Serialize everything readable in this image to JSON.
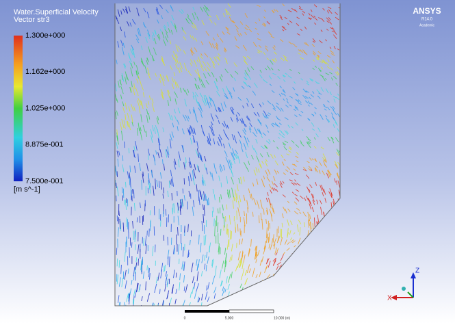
{
  "legend": {
    "title": "Water.Superficial Velocity",
    "subtitle": "Vector str3",
    "ticks": [
      "1.300e+000",
      "1.162e+000",
      "1.025e+000",
      "8.875e-001",
      "7.500e-001"
    ],
    "unit": "[m s^-1]"
  },
  "logo": {
    "name": "ANSYS",
    "version": "R14.0",
    "edition": "Academic"
  },
  "scale": {
    "labels": [
      "0",
      "5.000",
      "10.000 (m)"
    ]
  },
  "axes": {
    "vertical": "Z",
    "horizontal": "X"
  }
}
